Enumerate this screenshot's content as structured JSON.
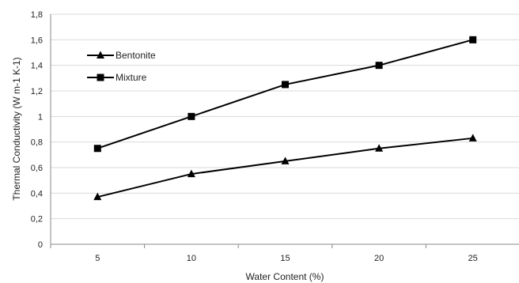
{
  "chart_data": {
    "type": "line",
    "x": [
      5,
      10,
      15,
      20,
      25
    ],
    "xlabel": "Water Content  (%)",
    "ylabel": "Thermal Conductivity (W m-1 K-1)",
    "ylim": [
      0,
      1.8
    ],
    "y_ticks": [
      "0",
      "0,2",
      "0,4",
      "0,6",
      "0,8",
      "1",
      "1,2",
      "1,4",
      "1,6",
      "1,8"
    ],
    "x_ticks": [
      "5",
      "10",
      "15",
      "20",
      "25"
    ],
    "grid": true,
    "legend": "upper-left",
    "series": [
      {
        "name": "Bentonite",
        "marker": "triangle",
        "color": "#000000",
        "values": [
          0.37,
          0.55,
          0.65,
          0.75,
          0.83
        ]
      },
      {
        "name": "Mixture",
        "marker": "square",
        "color": "#000000",
        "values": [
          0.75,
          1.0,
          1.25,
          1.4,
          1.6
        ]
      }
    ]
  }
}
